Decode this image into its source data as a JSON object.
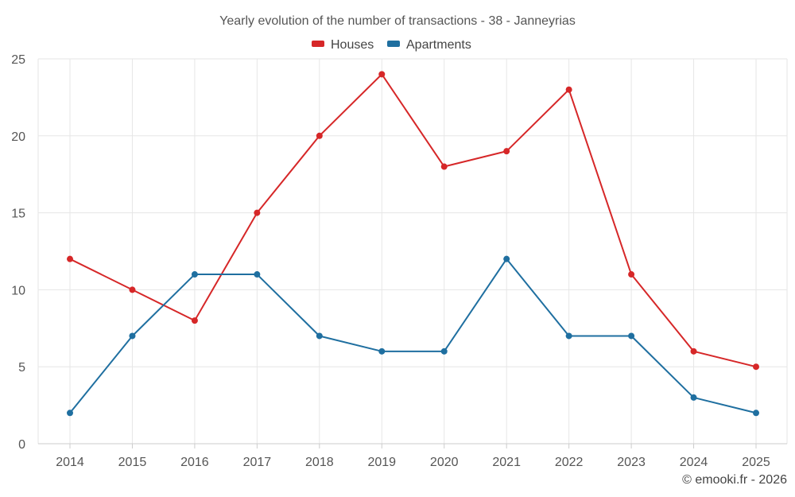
{
  "chart_data": {
    "type": "line",
    "title": "Yearly evolution of the number of transactions - 38 - Janneyrias",
    "categories": [
      "2014",
      "2015",
      "2016",
      "2017",
      "2018",
      "2019",
      "2020",
      "2021",
      "2022",
      "2023",
      "2024",
      "2025"
    ],
    "series": [
      {
        "name": "Houses",
        "color": "#d62728",
        "values": [
          12,
          10,
          8,
          15,
          20,
          24,
          18,
          19,
          23,
          11,
          6,
          5
        ]
      },
      {
        "name": "Apartments",
        "color": "#1f6fa0",
        "values": [
          2,
          7,
          11,
          11,
          7,
          6,
          6,
          12,
          7,
          7,
          3,
          2
        ]
      }
    ],
    "ylim": [
      0,
      25
    ],
    "yticks": [
      0,
      5,
      10,
      15,
      20,
      25
    ],
    "legend_position": "top-center",
    "grid": true
  },
  "footer": {
    "copyright": "© emooki.fr - 2026"
  }
}
